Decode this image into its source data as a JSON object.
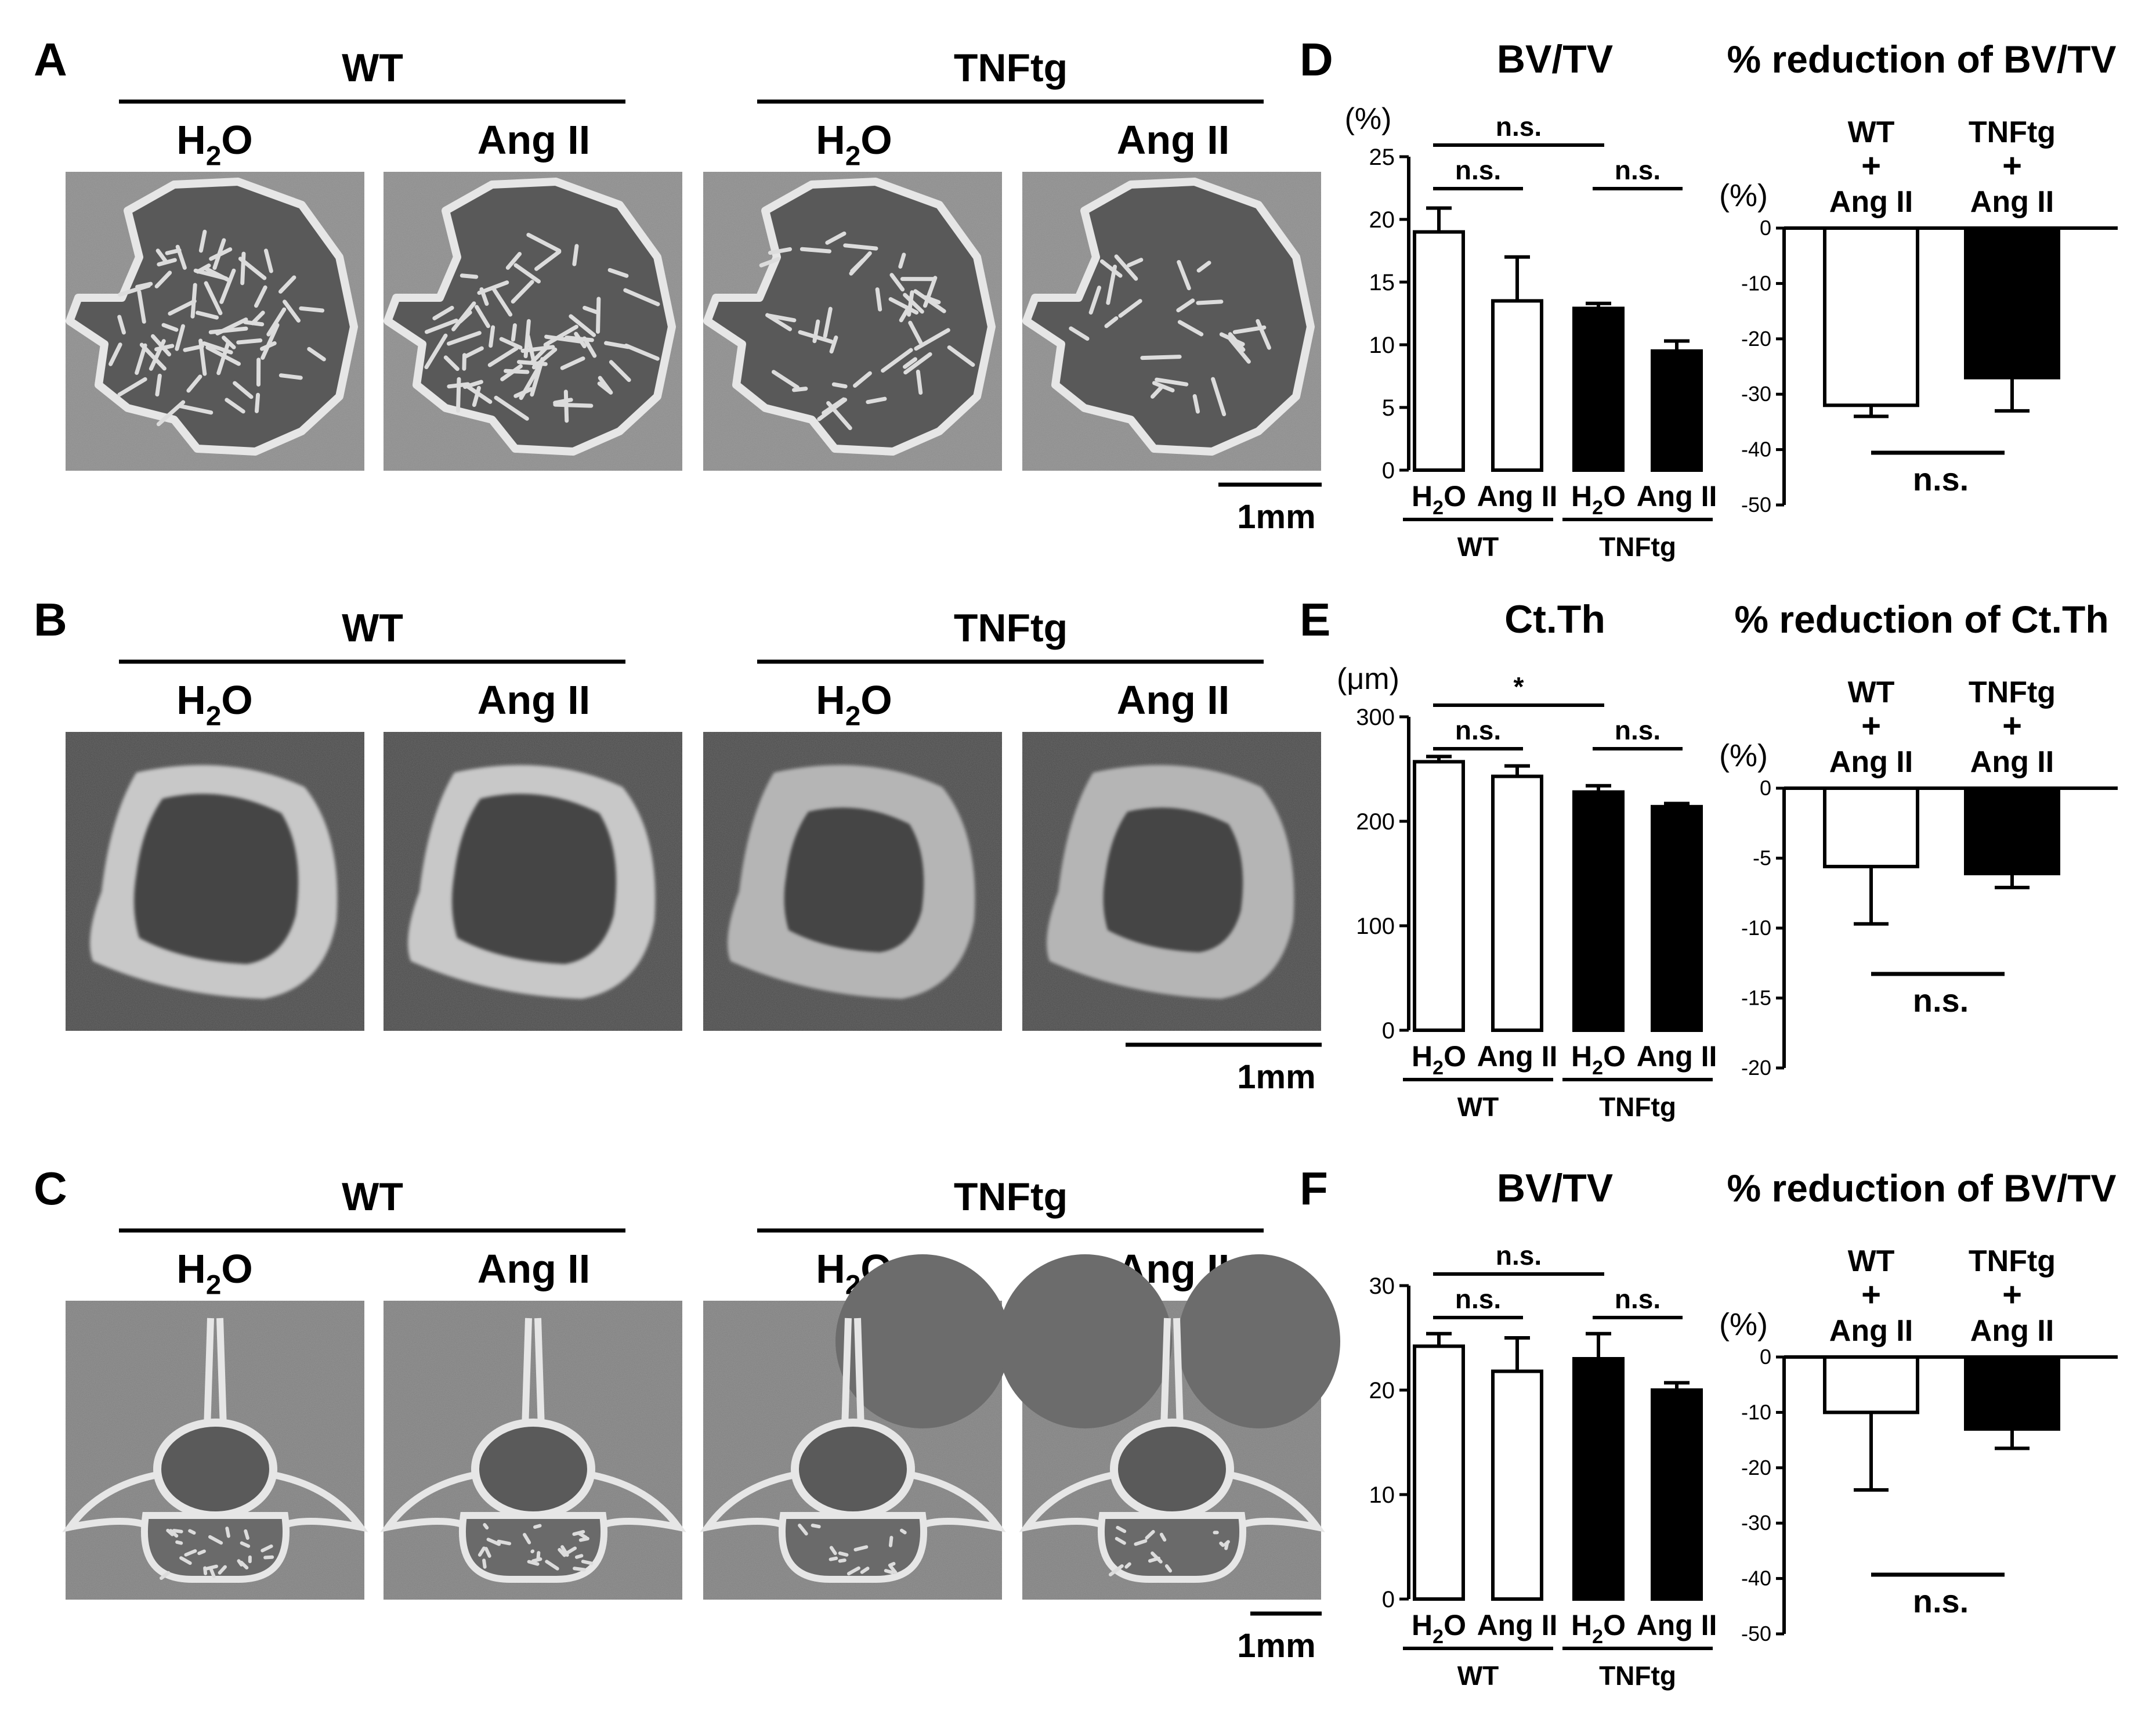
{
  "figure": {
    "panel_letters": [
      "A",
      "B",
      "C",
      "D",
      "E",
      "F"
    ],
    "micro_panels": [
      {
        "letter": "A",
        "group_wt": "WT",
        "group_tnf": "TNFtg",
        "conditions": [
          {
            "main": "H",
            "sub": "2",
            "tail": "O"
          },
          {
            "main": "Ang II",
            "sub": "",
            "tail": ""
          },
          {
            "main": "H",
            "sub": "2",
            "tail": "O"
          },
          {
            "main": "Ang II",
            "sub": "",
            "tail": ""
          }
        ],
        "scale_bar": "1mm",
        "image_kind": "trabecular-section-image"
      },
      {
        "letter": "B",
        "group_wt": "WT",
        "group_tnf": "TNFtg",
        "conditions": [
          {
            "main": "H",
            "sub": "2",
            "tail": "O"
          },
          {
            "main": "Ang II",
            "sub": "",
            "tail": ""
          },
          {
            "main": "H",
            "sub": "2",
            "tail": "O"
          },
          {
            "main": "Ang II",
            "sub": "",
            "tail": ""
          }
        ],
        "scale_bar": "1mm",
        "image_kind": "cortical-ring-image"
      },
      {
        "letter": "C",
        "group_wt": "WT",
        "group_tnf": "TNFtg",
        "conditions": [
          {
            "main": "H",
            "sub": "2",
            "tail": "O"
          },
          {
            "main": "Ang II",
            "sub": "",
            "tail": ""
          },
          {
            "main": "H",
            "sub": "2",
            "tail": "O"
          },
          {
            "main": "Ang II",
            "sub": "",
            "tail": ""
          }
        ],
        "scale_bar": "1mm",
        "image_kind": "vertebra-section-image"
      }
    ],
    "colors": {
      "wt_bar": "#ffffff",
      "tnf_bar": "#000000",
      "stroke": "#000000",
      "micrograph_bg_A": "#8a8a8a",
      "micrograph_bg_B": "#4a4a4a",
      "micrograph_bg_C": "#7e7e7e"
    }
  },
  "chart_data": [
    {
      "panel": "D",
      "type": "bar",
      "title": "BV/TV",
      "ylabel": "(%)",
      "ylim": [
        0,
        25
      ],
      "yticks": [
        0,
        5,
        10,
        15,
        20,
        25
      ],
      "categories": [
        {
          "main": "H",
          "sub": "2",
          "tail": "O"
        },
        {
          "main": "Ang II",
          "sub": "",
          "tail": ""
        },
        {
          "main": "H",
          "sub": "2",
          "tail": "O"
        },
        {
          "main": "Ang II",
          "sub": "",
          "tail": ""
        }
      ],
      "groups": [
        {
          "label": "WT",
          "from": 0,
          "to": 1
        },
        {
          "label": "TNFtg",
          "from": 2,
          "to": 3
        }
      ],
      "values": [
        19.0,
        13.5,
        12.9,
        9.5
      ],
      "errors": [
        1.9,
        3.5,
        0.4,
        0.8
      ],
      "fills": [
        "white",
        "white",
        "black",
        "black"
      ],
      "significance": [
        {
          "a": 0,
          "b": 1,
          "label": "n.s.",
          "tier": 1
        },
        {
          "a": 2,
          "b": 3,
          "label": "n.s.",
          "tier": 1
        },
        {
          "a": 0,
          "b": 2,
          "label": "n.s.",
          "tier": 2
        }
      ]
    },
    {
      "panel": "D",
      "type": "bar",
      "title": "% reduction of BV/TV",
      "ylabel": "(%)",
      "ylim": [
        -50,
        0
      ],
      "yticks": [
        0,
        -10,
        -20,
        -30,
        -40,
        -50
      ],
      "categories": [
        {
          "line1": "WT",
          "line2": "+",
          "line3": "Ang II"
        },
        {
          "line1": "TNFtg",
          "line2": "+",
          "line3": "Ang II"
        }
      ],
      "values": [
        -32,
        -27
      ],
      "errors": [
        2,
        6
      ],
      "fills": [
        "white",
        "black"
      ],
      "comparison": "n.s."
    },
    {
      "panel": "E",
      "type": "bar",
      "title": "Ct.Th",
      "ylabel": "(μm)",
      "ylim": [
        0,
        300
      ],
      "yticks": [
        0,
        100,
        200,
        300
      ],
      "categories": [
        {
          "main": "H",
          "sub": "2",
          "tail": "O"
        },
        {
          "main": "Ang II",
          "sub": "",
          "tail": ""
        },
        {
          "main": "H",
          "sub": "2",
          "tail": "O"
        },
        {
          "main": "Ang II",
          "sub": "",
          "tail": ""
        }
      ],
      "groups": [
        {
          "label": "WT",
          "from": 0,
          "to": 1
        },
        {
          "label": "TNFtg",
          "from": 2,
          "to": 3
        }
      ],
      "values": [
        257,
        243,
        228,
        214
      ],
      "errors": [
        5,
        10,
        6,
        3
      ],
      "fills": [
        "white",
        "white",
        "black",
        "black"
      ],
      "significance": [
        {
          "a": 0,
          "b": 1,
          "label": "n.s.",
          "tier": 1
        },
        {
          "a": 2,
          "b": 3,
          "label": "n.s.",
          "tier": 1
        },
        {
          "a": 0,
          "b": 2,
          "label": "*",
          "tier": 2
        }
      ]
    },
    {
      "panel": "E",
      "type": "bar",
      "title": "% reduction of Ct.Th",
      "ylabel": "(%)",
      "ylim": [
        -20,
        0
      ],
      "yticks": [
        0,
        -5,
        -10,
        -15,
        -20
      ],
      "categories": [
        {
          "line1": "WT",
          "line2": "+",
          "line3": "Ang II"
        },
        {
          "line1": "TNFtg",
          "line2": "+",
          "line3": "Ang II"
        }
      ],
      "values": [
        -5.6,
        -6.1
      ],
      "errors": [
        4.1,
        1.0
      ],
      "fills": [
        "white",
        "black"
      ],
      "comparison": "n.s."
    },
    {
      "panel": "F",
      "type": "bar",
      "title": "BV/TV",
      "ylabel": "",
      "ylim": [
        0,
        30
      ],
      "yticks": [
        0,
        10,
        20,
        30
      ],
      "categories": [
        {
          "main": "H",
          "sub": "2",
          "tail": "O"
        },
        {
          "main": "Ang II",
          "sub": "",
          "tail": ""
        },
        {
          "main": "H",
          "sub": "2",
          "tail": "O"
        },
        {
          "main": "Ang II",
          "sub": "",
          "tail": ""
        }
      ],
      "groups": [
        {
          "label": "WT",
          "from": 0,
          "to": 1
        },
        {
          "label": "TNFtg",
          "from": 2,
          "to": 3
        }
      ],
      "values": [
        24.2,
        21.8,
        23.0,
        20.0
      ],
      "errors": [
        1.2,
        3.2,
        2.4,
        0.7
      ],
      "fills": [
        "white",
        "white",
        "black",
        "black"
      ],
      "significance": [
        {
          "a": 0,
          "b": 1,
          "label": "n.s.",
          "tier": 1
        },
        {
          "a": 2,
          "b": 3,
          "label": "n.s.",
          "tier": 1
        },
        {
          "a": 0,
          "b": 2,
          "label": "n.s.",
          "tier": 2
        }
      ]
    },
    {
      "panel": "F",
      "type": "bar",
      "title": "% reduction of BV/TV",
      "ylabel": "(%)",
      "ylim": [
        -50,
        0
      ],
      "yticks": [
        0,
        -10,
        -20,
        -30,
        -40,
        -50
      ],
      "categories": [
        {
          "line1": "WT",
          "line2": "+",
          "line3": "Ang II"
        },
        {
          "line1": "TNFtg",
          "line2": "+",
          "line3": "Ang II"
        }
      ],
      "values": [
        -10,
        -13
      ],
      "errors": [
        14,
        3.5
      ],
      "fills": [
        "white",
        "black"
      ],
      "comparison": "n.s."
    }
  ]
}
